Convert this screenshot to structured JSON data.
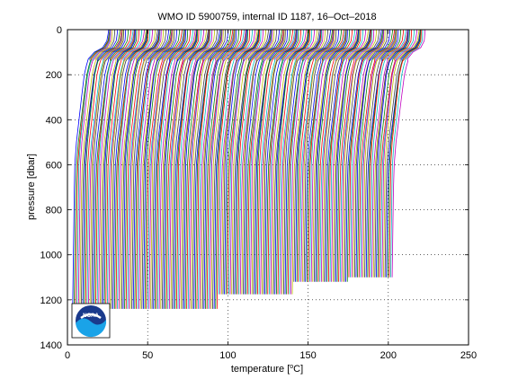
{
  "chart_data": {
    "type": "line",
    "title": "WMO ID 5900759, internal ID 1187, 16–Oct–2018",
    "xlabel_prefix": "temperature [",
    "xlabel_superscript": "o",
    "xlabel_suffix": "C]",
    "ylabel": "pressure [dbar]",
    "xlim": [
      0,
      250
    ],
    "ylim": [
      0,
      1400
    ],
    "y_reversed": true,
    "grid": true,
    "grid_style": "dotted",
    "x_ticks": [
      0,
      50,
      100,
      150,
      200,
      250
    ],
    "y_ticks": [
      0,
      200,
      400,
      600,
      800,
      1000,
      1200,
      1400
    ],
    "x_tick_labels": [
      "0",
      "50",
      "100",
      "150",
      "200",
      "250"
    ],
    "y_tick_labels": [
      "0",
      "200",
      "400",
      "600",
      "800",
      "1000",
      "1200",
      "1400"
    ],
    "profile_offset_step": 0.9,
    "profile_count": 222,
    "series_colors": [
      "#0000ff",
      "#008000",
      "#ff0000",
      "#00bfbf",
      "#bf00bf",
      "#bfbf00",
      "#404040"
    ],
    "representative_profile": {
      "pressure": [
        0,
        20,
        50,
        80,
        100,
        130,
        160,
        200,
        300,
        400,
        500,
        600,
        700,
        800,
        900,
        1000,
        1100,
        1200
      ],
      "temperature": [
        24.5,
        24.3,
        23.8,
        21.5,
        16.5,
        13.0,
        11.8,
        10.5,
        8.8,
        7.2,
        5.6,
        4.6,
        4.3,
        4.1,
        3.9,
        3.7,
        3.5,
        3.3
      ]
    },
    "max_pressure_groups": [
      {
        "from_index": 0,
        "to_index": 100,
        "max_pressure": 1240
      },
      {
        "from_index": 101,
        "to_index": 152,
        "max_pressure": 1175
      },
      {
        "from_index": 153,
        "to_index": 190,
        "max_pressure": 1120
      },
      {
        "from_index": 191,
        "to_index": 221,
        "max_pressure": 1100
      }
    ]
  },
  "logo": {
    "text": "NOAA"
  }
}
